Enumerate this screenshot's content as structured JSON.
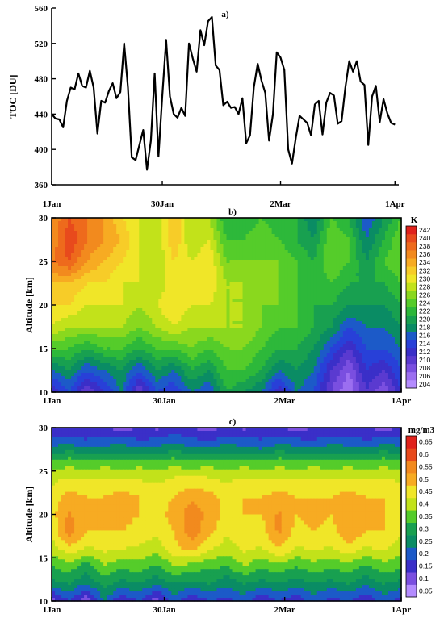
{
  "chart_data": [
    {
      "type": "line",
      "panel_label": "a)",
      "ylabel": "TOC [DU]",
      "ylim": [
        360,
        560
      ],
      "yticks": [
        360,
        400,
        440,
        480,
        520,
        560
      ],
      "xlim": [
        0,
        91
      ],
      "xticks": [
        {
          "x": 0,
          "label": "1Jan"
        },
        {
          "x": 29,
          "label": "30Jan"
        },
        {
          "x": 60,
          "label": "2Mar"
        },
        {
          "x": 90,
          "label": "1Apr"
        }
      ],
      "series": [
        {
          "x": [
            0,
            1,
            2,
            3,
            4,
            5,
            6,
            7,
            8,
            9,
            10,
            11,
            12,
            13,
            14,
            15,
            16,
            17,
            18,
            19,
            20,
            21,
            22,
            23,
            24,
            25,
            26,
            27,
            28,
            29,
            30,
            31,
            32,
            33,
            34,
            35,
            36,
            37,
            38,
            39,
            40,
            41,
            42,
            43,
            44,
            45,
            46,
            47,
            48,
            49,
            50,
            51,
            52,
            53,
            54,
            55,
            56,
            57,
            58,
            59,
            60,
            61,
            62,
            63,
            64,
            65,
            66,
            67,
            68,
            69,
            70,
            71,
            72,
            73,
            74,
            75,
            76,
            77,
            78,
            79,
            80,
            81,
            82,
            83,
            84,
            85,
            86,
            87,
            88,
            89,
            90
          ],
          "y": [
            440,
            435,
            434,
            425,
            455,
            470,
            468,
            486,
            472,
            470,
            489,
            470,
            418,
            455,
            453,
            466,
            475,
            458,
            465,
            520,
            470,
            391,
            388,
            405,
            422,
            377,
            410,
            486,
            392,
            460,
            524,
            460,
            440,
            436,
            447,
            438,
            520,
            503,
            488,
            535,
            518,
            545,
            550,
            495,
            490,
            450,
            454,
            447,
            448,
            440,
            458,
            407,
            416,
            470,
            497,
            478,
            464,
            410,
            440,
            510,
            504,
            490,
            400,
            384,
            413,
            438,
            434,
            430,
            416,
            451,
            455,
            417,
            453,
            464,
            461,
            429,
            432,
            470,
            500,
            488,
            500,
            477,
            473,
            405,
            460,
            472,
            431,
            457,
            441,
            430,
            428
          ]
        }
      ]
    },
    {
      "type": "heatmap",
      "panel_label": "b)",
      "ylabel": "Altitude [km]",
      "ylim": [
        10,
        30
      ],
      "yticks": [
        10,
        15,
        20,
        25,
        30
      ],
      "xticks": [
        {
          "x": 0,
          "label": "1Jan"
        },
        {
          "x": 29,
          "label": "30Jan"
        },
        {
          "x": 60,
          "label": "2Mar"
        },
        {
          "x": 90,
          "label": "1Apr"
        }
      ],
      "colorbar_unit": "K",
      "levels": [
        204,
        206,
        208,
        210,
        212,
        214,
        216,
        218,
        220,
        222,
        224,
        226,
        228,
        230,
        232,
        234,
        236,
        238,
        240,
        242
      ],
      "colors": [
        "#b48cff",
        "#9b6ef0",
        "#7a4fe0",
        "#5a3ad0",
        "#3a2fc8",
        "#2840d8",
        "#1c5ac8",
        "#0a8c64",
        "#18a050",
        "#2db83a",
        "#55cc2a",
        "#8ad81e",
        "#c2e21a",
        "#f0e628",
        "#f7cc28",
        "#f7ab22",
        "#f28a1e",
        "#ee6a1c",
        "#e84a1c",
        "#e0221c"
      ],
      "grid": {
        "x": [
          0,
          4.5,
          9,
          13.5,
          18,
          22.5,
          27,
          31.5,
          36,
          40.5,
          45,
          49.5,
          54,
          58.5,
          63,
          67.5,
          72,
          76.5,
          81,
          85.5,
          90
        ],
        "y": [
          10,
          12.5,
          15,
          17.5,
          20,
          22.5,
          25,
          27.5,
          30
        ]
      },
      "z": [
        [
          212,
          216,
          210,
          214,
          218,
          210,
          216,
          214,
          218,
          216,
          222,
          220,
          218,
          212,
          218,
          216,
          210,
          206,
          212,
          208,
          214
        ],
        [
          218,
          220,
          216,
          218,
          220,
          216,
          220,
          218,
          222,
          220,
          224,
          224,
          222,
          218,
          220,
          218,
          212,
          208,
          214,
          212,
          216
        ],
        [
          224,
          224,
          222,
          224,
          224,
          222,
          224,
          224,
          226,
          224,
          226,
          226,
          224,
          222,
          222,
          220,
          216,
          212,
          216,
          216,
          218
        ],
        [
          230,
          228,
          228,
          228,
          228,
          226,
          228,
          230,
          228,
          228,
          228,
          228,
          226,
          224,
          224,
          222,
          220,
          216,
          218,
          218,
          220
        ],
        [
          232,
          232,
          230,
          230,
          230,
          228,
          230,
          232,
          230,
          230,
          228,
          228,
          226,
          226,
          224,
          222,
          222,
          220,
          220,
          220,
          222
        ],
        [
          234,
          234,
          232,
          232,
          230,
          230,
          228,
          232,
          230,
          232,
          228,
          228,
          226,
          226,
          224,
          222,
          224,
          222,
          222,
          222,
          224
        ],
        [
          238,
          240,
          236,
          234,
          232,
          230,
          228,
          232,
          230,
          232,
          226,
          226,
          226,
          226,
          224,
          222,
          226,
          224,
          220,
          224,
          226
        ],
        [
          236,
          242,
          238,
          236,
          234,
          230,
          228,
          234,
          228,
          230,
          224,
          224,
          226,
          224,
          222,
          220,
          226,
          224,
          218,
          222,
          226
        ],
        [
          236,
          240,
          238,
          236,
          232,
          230,
          228,
          234,
          228,
          228,
          222,
          222,
          224,
          222,
          222,
          218,
          224,
          222,
          216,
          220,
          224
        ]
      ]
    },
    {
      "type": "heatmap",
      "panel_label": "c)",
      "ylabel": "Altitude [km]",
      "ylim": [
        10,
        30
      ],
      "yticks": [
        10,
        15,
        20,
        25,
        30
      ],
      "xticks": [
        {
          "x": 0,
          "label": "1Jan"
        },
        {
          "x": 29,
          "label": "30Jan"
        },
        {
          "x": 60,
          "label": "2Mar"
        },
        {
          "x": 90,
          "label": "1Apr"
        }
      ],
      "colorbar_unit": "mg/m3",
      "levels": [
        0.05,
        0.1,
        0.15,
        0.2,
        0.25,
        0.3,
        0.35,
        0.4,
        0.45,
        0.5,
        0.55,
        0.6,
        0.65
      ],
      "colors": [
        "#b48cff",
        "#7a4fe0",
        "#3a2fc8",
        "#1c5ac8",
        "#0a8c64",
        "#18a050",
        "#55cc2a",
        "#c2e21a",
        "#f0e628",
        "#f7ab22",
        "#f28a1e",
        "#e84a1c",
        "#e0221c"
      ],
      "grid": {
        "x": [
          0,
          4.5,
          9,
          13.5,
          18,
          22.5,
          27,
          31.5,
          36,
          40.5,
          45,
          49.5,
          54,
          58.5,
          63,
          67.5,
          72,
          76.5,
          81,
          85.5,
          90
        ],
        "y": [
          10,
          12,
          14,
          16,
          18,
          20,
          22,
          24,
          26,
          28,
          30
        ]
      },
      "z": [
        [
          0.12,
          0.2,
          0.1,
          0.25,
          0.15,
          0.2,
          0.12,
          0.22,
          0.15,
          0.2,
          0.18,
          0.22,
          0.15,
          0.2,
          0.16,
          0.22,
          0.18,
          0.2,
          0.15,
          0.22,
          0.18
        ],
        [
          0.28,
          0.3,
          0.25,
          0.32,
          0.28,
          0.3,
          0.26,
          0.3,
          0.28,
          0.3,
          0.26,
          0.3,
          0.28,
          0.3,
          0.27,
          0.3,
          0.28,
          0.3,
          0.26,
          0.3,
          0.28
        ],
        [
          0.35,
          0.38,
          0.32,
          0.4,
          0.36,
          0.38,
          0.34,
          0.4,
          0.38,
          0.36,
          0.35,
          0.4,
          0.36,
          0.38,
          0.35,
          0.38,
          0.36,
          0.38,
          0.34,
          0.38,
          0.36
        ],
        [
          0.42,
          0.48,
          0.44,
          0.46,
          0.45,
          0.44,
          0.42,
          0.48,
          0.52,
          0.46,
          0.42,
          0.46,
          0.44,
          0.5,
          0.44,
          0.46,
          0.44,
          0.48,
          0.44,
          0.46,
          0.42
        ],
        [
          0.46,
          0.58,
          0.5,
          0.5,
          0.5,
          0.48,
          0.46,
          0.5,
          0.58,
          0.52,
          0.46,
          0.48,
          0.48,
          0.56,
          0.48,
          0.5,
          0.48,
          0.54,
          0.5,
          0.5,
          0.46
        ],
        [
          0.48,
          0.56,
          0.5,
          0.5,
          0.52,
          0.5,
          0.48,
          0.52,
          0.58,
          0.54,
          0.48,
          0.5,
          0.5,
          0.56,
          0.5,
          0.52,
          0.5,
          0.54,
          0.52,
          0.5,
          0.48
        ],
        [
          0.47,
          0.52,
          0.5,
          0.5,
          0.52,
          0.5,
          0.48,
          0.5,
          0.54,
          0.52,
          0.48,
          0.5,
          0.5,
          0.52,
          0.5,
          0.5,
          0.5,
          0.52,
          0.5,
          0.5,
          0.48
        ],
        [
          0.44,
          0.46,
          0.45,
          0.46,
          0.46,
          0.45,
          0.44,
          0.46,
          0.47,
          0.46,
          0.44,
          0.46,
          0.45,
          0.46,
          0.45,
          0.46,
          0.45,
          0.46,
          0.45,
          0.46,
          0.44
        ],
        [
          0.36,
          0.38,
          0.36,
          0.38,
          0.36,
          0.38,
          0.36,
          0.38,
          0.36,
          0.38,
          0.36,
          0.38,
          0.36,
          0.38,
          0.36,
          0.38,
          0.36,
          0.38,
          0.36,
          0.38,
          0.36
        ],
        [
          0.24,
          0.26,
          0.22,
          0.24,
          0.26,
          0.22,
          0.24,
          0.26,
          0.24,
          0.22,
          0.26,
          0.24,
          0.22,
          0.26,
          0.24,
          0.22,
          0.26,
          0.24,
          0.22,
          0.26,
          0.24
        ],
        [
          0.15,
          0.14,
          0.16,
          0.15,
          0.13,
          0.15,
          0.14,
          0.16,
          0.15,
          0.13,
          0.15,
          0.14,
          0.16,
          0.15,
          0.13,
          0.15,
          0.14,
          0.16,
          0.15,
          0.13,
          0.15
        ]
      ]
    }
  ]
}
